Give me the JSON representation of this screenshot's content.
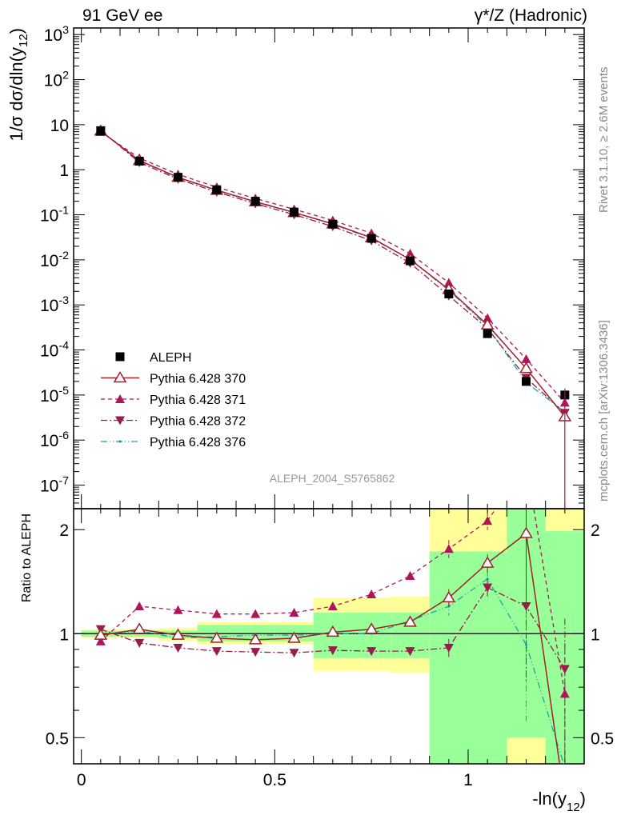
{
  "header": {
    "left": "91 GeV ee",
    "right": "γ*/Z (Hadronic)"
  },
  "side_labels": {
    "rivet": "Rivet 3.1.10, ≥ 2.6M events",
    "mcplots": "mcplots.cern.ch [arXiv:1306.3436]"
  },
  "watermark": "ALEPH_2004_S5765862",
  "colors": {
    "data": "#000000",
    "p370": "#a0202a",
    "p371": "#b0145a",
    "p372": "#9a1c4a",
    "p376": "#1aa6a0",
    "band_yellow": "#ffff99",
    "band_green": "#99ff99"
  },
  "chart_data": [
    {
      "type": "scatter",
      "panel": "main",
      "ylabel": "1/σ  dσ/dln(y12)",
      "yscale": "log",
      "ylim": [
        3e-08,
        1400
      ],
      "xlim": [
        -0.02,
        1.3
      ],
      "x": [
        0.05,
        0.15,
        0.25,
        0.35,
        0.45,
        0.55,
        0.65,
        0.75,
        0.85,
        0.95,
        1.05,
        1.15,
        1.25
      ],
      "yticks": [
        "10^-7",
        "10^-6",
        "10^-5",
        "10^-4",
        "10^-3",
        "10^-2",
        "10^-1",
        "1",
        "10",
        "10^2",
        "10^3"
      ],
      "legend_position": "lower-left",
      "series": [
        {
          "name": "ALEPH",
          "key": "data",
          "values": [
            7.3,
            1.55,
            0.68,
            0.36,
            0.2,
            0.115,
            0.062,
            0.03,
            0.0095,
            0.00175,
            0.00023,
            2e-05,
            1e-05
          ]
        },
        {
          "name": "Pythia 6.428 370",
          "key": "p370",
          "values": [
            7.2,
            1.6,
            0.68,
            0.35,
            0.195,
            0.112,
            0.063,
            0.031,
            0.0102,
            0.0022,
            0.00036,
            3.9e-05,
            3.3e-06
          ]
        },
        {
          "name": "Pythia 6.428 371",
          "key": "p371",
          "values": [
            6.9,
            1.82,
            0.79,
            0.41,
            0.23,
            0.133,
            0.075,
            0.039,
            0.0138,
            0.0031,
            0.00051,
            6.3e-05,
            6.8e-06
          ]
        },
        {
          "name": "Pythia 6.428 372",
          "key": "p372",
          "values": [
            7.5,
            1.45,
            0.62,
            0.32,
            0.177,
            0.101,
            0.055,
            0.0267,
            0.0085,
            0.0016,
            0.0003,
            2.4e-05,
            4e-06
          ]
        },
        {
          "name": "Pythia 6.428 376",
          "key": "p376",
          "values": [
            7.2,
            1.58,
            0.66,
            0.355,
            0.198,
            0.114,
            0.062,
            0.03,
            0.0103,
            0.0021,
            0.00033,
            1.9e-05,
            4.2e-06
          ]
        }
      ]
    },
    {
      "type": "line",
      "panel": "ratio",
      "ylabel": "Ratio to ALEPH",
      "xlabel": "-ln(y12)",
      "yscale": "log",
      "ylim": [
        0.42,
        2.3
      ],
      "xlim": [
        -0.02,
        1.3
      ],
      "x": [
        0.05,
        0.15,
        0.25,
        0.35,
        0.45,
        0.55,
        0.65,
        0.75,
        0.85,
        0.95,
        1.05,
        1.15,
        1.25
      ],
      "xticks": [
        "0",
        "0.5",
        "1"
      ],
      "yticks": [
        "0.5",
        "1",
        "2"
      ],
      "bands": [
        {
          "x0": 0.0,
          "x1": 0.1,
          "yellow": [
            0.97,
            1.03
          ],
          "green": [
            0.98,
            1.02
          ]
        },
        {
          "x0": 0.1,
          "x1": 0.2,
          "yellow": [
            0.97,
            1.03
          ],
          "green": [
            0.98,
            1.02
          ]
        },
        {
          "x0": 0.2,
          "x1": 0.3,
          "yellow": [
            0.95,
            1.04
          ],
          "green": [
            0.97,
            1.02
          ]
        },
        {
          "x0": 0.3,
          "x1": 0.4,
          "yellow": [
            0.93,
            1.08
          ],
          "green": [
            0.95,
            1.06
          ]
        },
        {
          "x0": 0.4,
          "x1": 0.5,
          "yellow": [
            0.93,
            1.08
          ],
          "green": [
            0.95,
            1.06
          ]
        },
        {
          "x0": 0.5,
          "x1": 0.6,
          "yellow": [
            0.93,
            1.08
          ],
          "green": [
            0.95,
            1.06
          ]
        },
        {
          "x0": 0.6,
          "x1": 0.7,
          "yellow": [
            0.78,
            1.27
          ],
          "green": [
            0.85,
            1.15
          ]
        },
        {
          "x0": 0.7,
          "x1": 0.8,
          "yellow": [
            0.78,
            1.27
          ],
          "green": [
            0.85,
            1.15
          ]
        },
        {
          "x0": 0.8,
          "x1": 0.9,
          "yellow": [
            0.77,
            1.28
          ],
          "green": [
            0.85,
            1.15
          ]
        },
        {
          "x0": 0.9,
          "x1": 1.0,
          "yellow": [
            0.3,
            2.3
          ],
          "green": [
            0.3,
            1.73
          ]
        },
        {
          "x0": 1.0,
          "x1": 1.1,
          "yellow": [
            0.3,
            2.3
          ],
          "green": [
            0.3,
            1.73
          ]
        },
        {
          "x0": 1.1,
          "x1": 1.2,
          "yellow": [
            0.3,
            0.5
          ],
          "green": [
            0.5,
            2.3
          ]
        },
        {
          "x0": 1.2,
          "x1": 1.3,
          "yellow": [
            0.3,
            2.3
          ],
          "green": [
            0.3,
            1.98
          ]
        }
      ],
      "series": [
        {
          "name": "Pythia 6.428 370",
          "key": "p370",
          "values": [
            0.99,
            1.03,
            0.99,
            0.97,
            0.96,
            0.97,
            1.01,
            1.03,
            1.08,
            1.27,
            1.6,
            1.95,
            0.33
          ]
        },
        {
          "name": "Pythia 6.428 371",
          "key": "p371",
          "values": [
            0.95,
            1.2,
            1.17,
            1.14,
            1.14,
            1.15,
            1.2,
            1.3,
            1.47,
            1.76,
            2.12,
            3.1,
            0.67
          ]
        },
        {
          "name": "Pythia 6.428 372",
          "key": "p372",
          "values": [
            1.03,
            0.94,
            0.91,
            0.89,
            0.885,
            0.88,
            0.895,
            0.89,
            0.89,
            0.91,
            1.36,
            1.2,
            0.79
          ]
        },
        {
          "name": "Pythia 6.428 376",
          "key": "p376",
          "values": [
            0.99,
            1.02,
            0.97,
            0.98,
            0.99,
            0.99,
            1.0,
            1.0,
            1.09,
            1.2,
            1.44,
            0.93,
            0.41
          ]
        }
      ]
    }
  ]
}
